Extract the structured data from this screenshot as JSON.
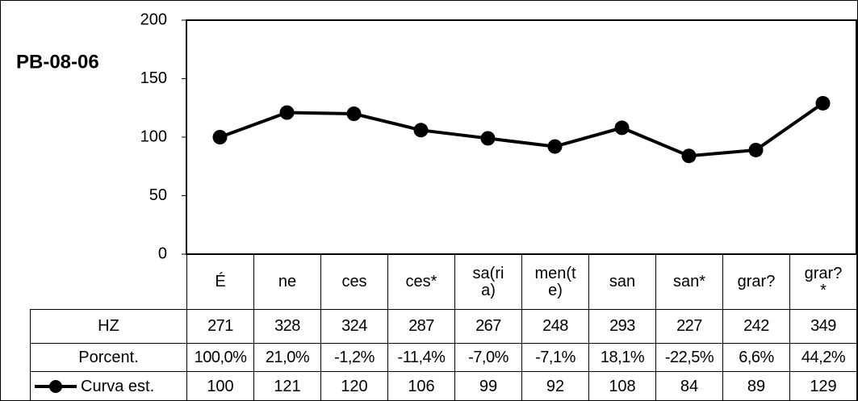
{
  "chart_data": {
    "type": "line",
    "title": "PB-08-06",
    "categories": [
      "É",
      "ne",
      "ces",
      "ces*",
      "sa(ria)",
      "men(te)",
      "san",
      "san*",
      "grar?",
      "grar?*"
    ],
    "series": [
      {
        "name": "Curva est.",
        "color": "#000000",
        "values": [
          100,
          121,
          120,
          106,
          99,
          92,
          108,
          84,
          89,
          129
        ]
      }
    ],
    "table_rows": [
      {
        "name": "HZ",
        "values": [
          271,
          328,
          324,
          287,
          267,
          248,
          293,
          227,
          242,
          349
        ]
      },
      {
        "name": "Porcent.",
        "values": [
          "100,0%",
          "21,0%",
          "-1,2%",
          "-11,4%",
          "-7,0%",
          "-7,1%",
          "18,1%",
          "-22,5%",
          "6,6%",
          "44,2%"
        ]
      }
    ],
    "ylim": [
      0,
      200
    ],
    "yticks": [
      0,
      50,
      100,
      150,
      200
    ],
    "grid": false
  }
}
